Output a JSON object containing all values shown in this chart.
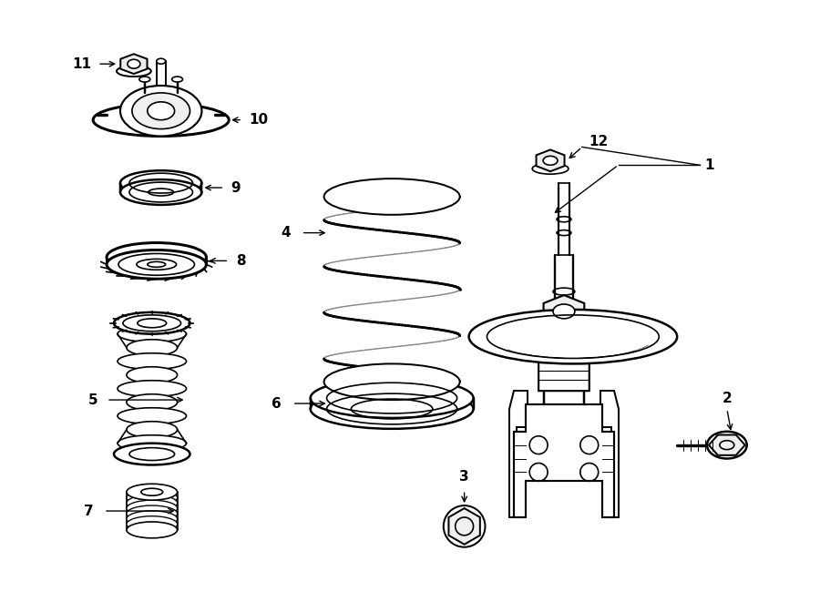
{
  "bg": "#ffffff",
  "lc": "#000000",
  "fw": 9.0,
  "fh": 6.61,
  "dpi": 100,
  "label_fs": 11,
  "arrow_lw": 1.0,
  "draw_lw": 1.2
}
